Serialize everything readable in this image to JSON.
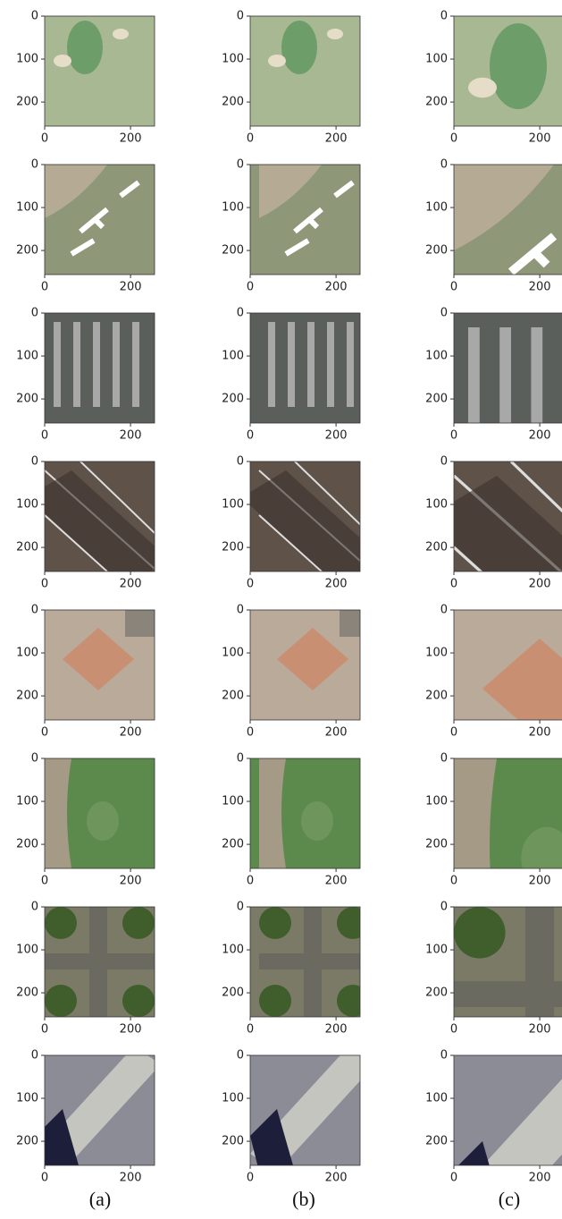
{
  "panels": {
    "xlim": [
      0,
      256
    ],
    "ylim": [
      0,
      256
    ],
    "xticks": [
      0,
      200
    ],
    "yticks": [
      0,
      100,
      200
    ]
  },
  "columns": [
    "(a)",
    "(b)",
    "(c)"
  ]
}
